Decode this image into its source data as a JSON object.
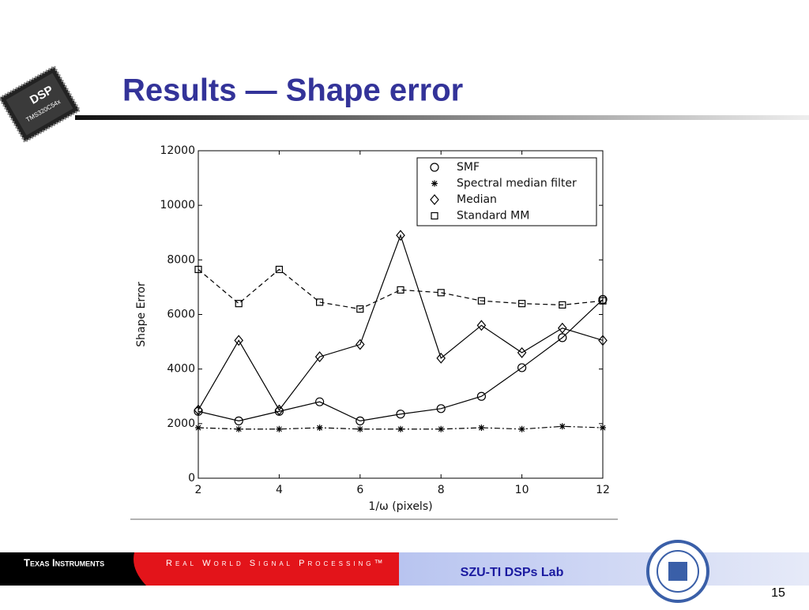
{
  "slide": {
    "title": "Results — Shape error",
    "logo_brand": "DSP",
    "logo_chip": "TMS320C54x",
    "footer_company": "Texas Instruments",
    "footer_tagline": "Real World Signal Processing™",
    "footer_lab": "SZU-TI DSPs Lab",
    "page_number": "15"
  },
  "chart_data": {
    "type": "line",
    "xlabel": "1/ω (pixels)",
    "ylabel": "Shape Error",
    "x": [
      2,
      3,
      4,
      5,
      6,
      7,
      8,
      9,
      10,
      11,
      12
    ],
    "xlim": [
      2,
      12
    ],
    "xticks": [
      2,
      4,
      6,
      8,
      10,
      12
    ],
    "ylim": [
      0,
      12000
    ],
    "yticks": [
      0,
      2000,
      4000,
      6000,
      8000,
      10000,
      12000
    ],
    "legend": "upper right",
    "grid": false,
    "series": [
      {
        "name": "SMF",
        "color": "#000000",
        "marker": "circle",
        "dash": "solid",
        "values": [
          2450,
          2100,
          2450,
          2800,
          2100,
          2350,
          2550,
          3000,
          4050,
          5150,
          6550
        ]
      },
      {
        "name": "Spectral median filter",
        "color": "#000000",
        "marker": "asterisk",
        "dash": "dashdot",
        "values": [
          1850,
          1800,
          1800,
          1850,
          1800,
          1800,
          1800,
          1850,
          1800,
          1900,
          1850
        ]
      },
      {
        "name": "Median",
        "color": "#000000",
        "marker": "diamond",
        "dash": "solid",
        "values": [
          2500,
          5050,
          2500,
          4450,
          4900,
          8900,
          4400,
          5600,
          4600,
          5500,
          5050
        ]
      },
      {
        "name": "Standard MM",
        "color": "#000000",
        "marker": "square",
        "dash": "dashed",
        "values": [
          7650,
          6400,
          7650,
          6450,
          6200,
          6900,
          6800,
          6500,
          6400,
          6350,
          6500
        ]
      }
    ]
  }
}
